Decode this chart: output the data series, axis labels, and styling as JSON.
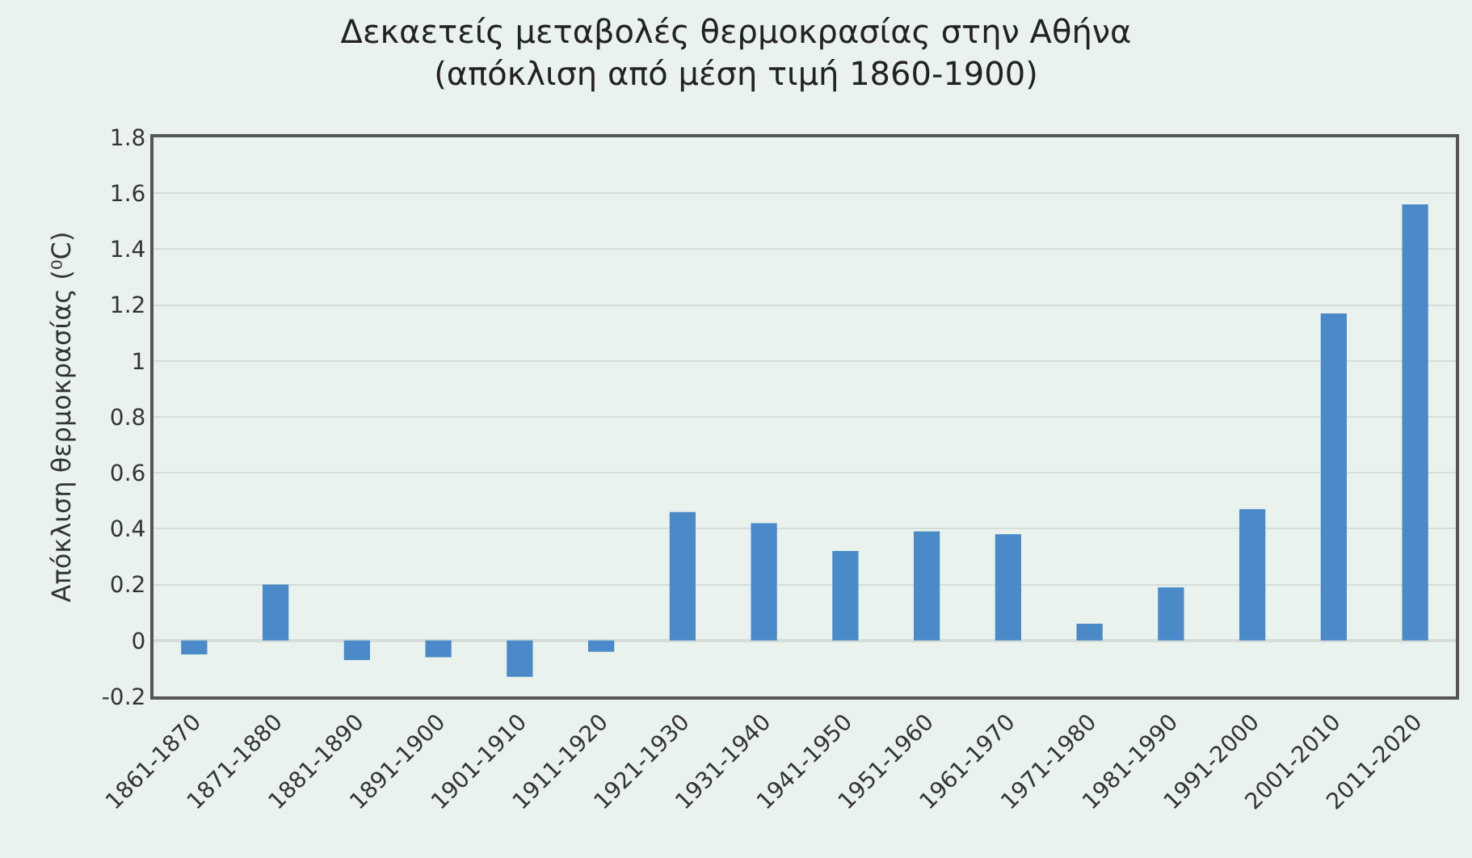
{
  "chart_data": {
    "type": "bar",
    "title": "Δεκαετείς μεταβολές θερμοκρασίας στην Αθήνα",
    "subtitle": "(απόκλιση από μέση τιμή 1860-1900)",
    "ylabel": "Απόκλιση θερμοκρασίας (⁰C)",
    "categories": [
      "1861-1870",
      "1871-1880",
      "1881-1890",
      "1891-1900",
      "1901-1910",
      "1911-1920",
      "1921-1930",
      "1931-1940",
      "1941-1950",
      "1951-1960",
      "1961-1970",
      "1971-1980",
      "1981-1990",
      "1991-2000",
      "2001-2010",
      "2011-2020"
    ],
    "values": [
      -0.05,
      0.2,
      -0.07,
      -0.06,
      -0.13,
      -0.04,
      0.46,
      0.42,
      0.32,
      0.39,
      0.38,
      0.06,
      0.19,
      0.47,
      1.17,
      1.56
    ],
    "color": "#4a8ac8",
    "ylim": [
      -0.2,
      1.8
    ],
    "yticks": [
      -0.2,
      0,
      0.2,
      0.4,
      0.6,
      0.8,
      1,
      1.2,
      1.4,
      1.6,
      1.8
    ],
    "grid": "y"
  }
}
